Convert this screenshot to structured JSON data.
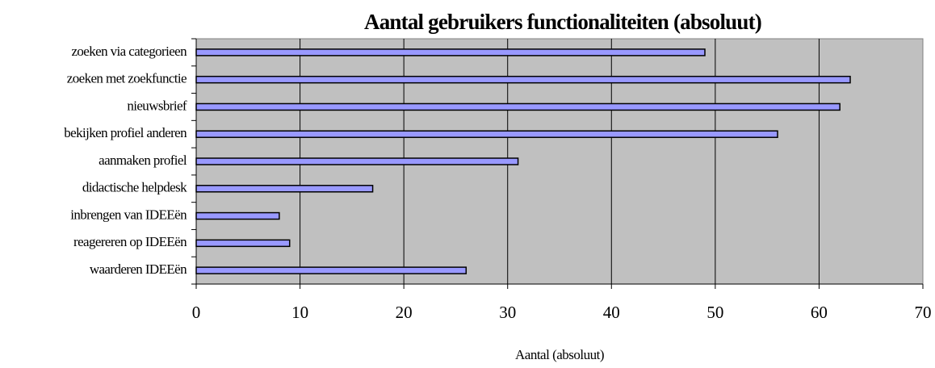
{
  "chart_data": {
    "type": "barh",
    "title": "Aantal gebruikers functionaliteiten (absoluut)",
    "xlabel": "Aantal (absoluut)",
    "categories": [
      "zoeken via categorieen",
      "zoeken met zoekfunctie",
      "nieuwsbrief",
      "bekijken profiel anderen",
      "aanmaken profiel",
      "didactische helpdesk",
      "inbrengen van IDEEën",
      "reagereren op IDEEën",
      "waarderen IDEEën"
    ],
    "values": [
      49,
      63,
      62,
      56,
      31,
      17,
      8,
      9,
      26
    ],
    "color": "#9999ff",
    "xlim": [
      0,
      70
    ],
    "xticks": [
      0,
      10,
      20,
      30,
      40,
      50,
      60,
      70
    ],
    "grid": true
  }
}
